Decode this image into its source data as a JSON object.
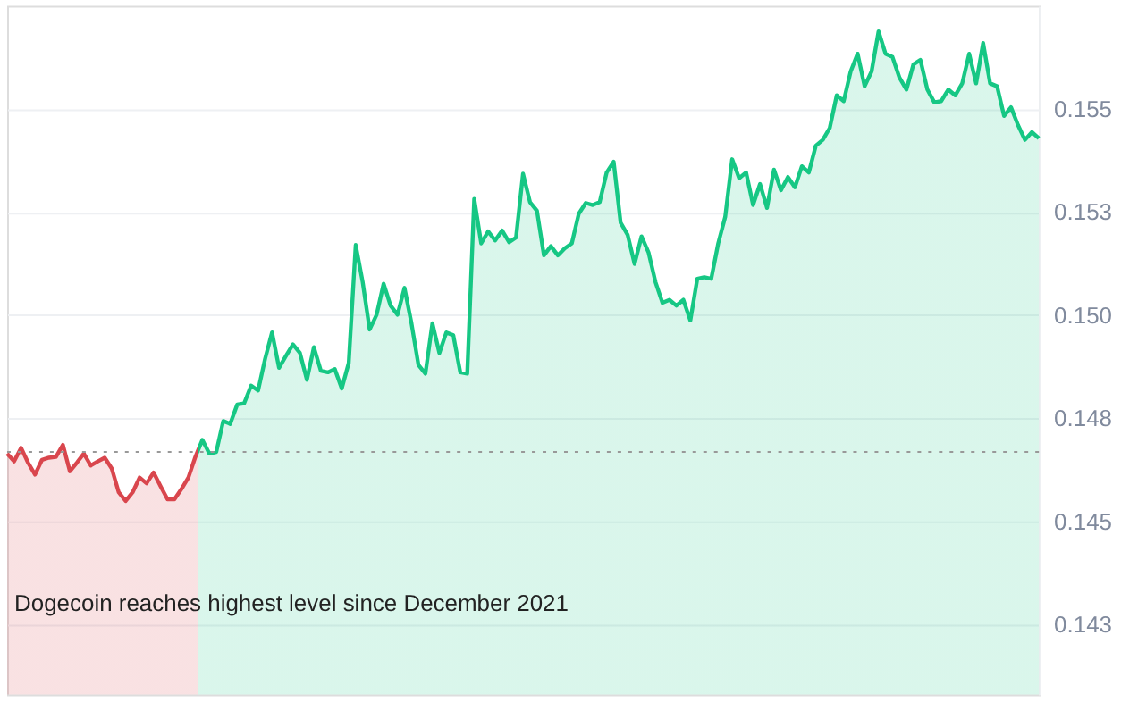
{
  "chart_data": {
    "type": "area",
    "categories": [
      null,
      null,
      null,
      null,
      null,
      null,
      null,
      null,
      null,
      null,
      null,
      null,
      null,
      null,
      null,
      null,
      null,
      null,
      null,
      null,
      null,
      null,
      null,
      null,
      null,
      null,
      null,
      null,
      null,
      null,
      null,
      null,
      null,
      null,
      null,
      null,
      null,
      null,
      null,
      null,
      null,
      null,
      null,
      null,
      null,
      null,
      null,
      null,
      null,
      null,
      null,
      null,
      null,
      null,
      null,
      null,
      null,
      null,
      null,
      null,
      null,
      null,
      null,
      null,
      null,
      null,
      null,
      null,
      null,
      null,
      null,
      null,
      null,
      null,
      null,
      null,
      null,
      null,
      null,
      null,
      null,
      null,
      null,
      null,
      null,
      null,
      null,
      null,
      null,
      null,
      null,
      null,
      null,
      null,
      null,
      null,
      null,
      null,
      null,
      null,
      null,
      null,
      null,
      null,
      null,
      null,
      null,
      null,
      null,
      null,
      null,
      null,
      null,
      null,
      null,
      null,
      null,
      null,
      null,
      null,
      null,
      null,
      null,
      null,
      null,
      null,
      null,
      null,
      null,
      null,
      null,
      null,
      null,
      null,
      null,
      null,
      null,
      null,
      null,
      null,
      null,
      null,
      null,
      null,
      null,
      null,
      null,
      null,
      null
    ],
    "series": [
      {
        "colors": [
          "#d9464d",
          "#d9464d",
          "#d9464d",
          "#d9464d",
          "#d9464d",
          "#d9464d",
          "#d9464d",
          "#d9464d",
          "#d9464d",
          "#d9464d",
          "#d9464d",
          "#d9464d",
          "#d9464d",
          "#d9464d",
          "#d9464d",
          "#d9464d",
          "#d9464d",
          "#d9464d",
          "#d9464d",
          "#d9464d",
          "#d9464d",
          "#d9464d",
          "#d9464d",
          "#d9464d",
          "#d9464d",
          "#d9464d",
          "#d9464d",
          "#d9464d",
          "#16c784",
          "#16c784",
          "#16c784",
          "#16c784",
          "#16c784",
          "#16c784",
          "#16c784",
          "#16c784",
          "#16c784",
          "#16c784",
          "#16c784",
          "#16c784",
          "#16c784",
          "#16c784",
          "#16c784",
          "#16c784",
          "#16c784",
          "#16c784",
          "#16c784",
          "#16c784",
          "#16c784",
          "#16c784",
          "#16c784",
          "#16c784",
          "#16c784",
          "#16c784",
          "#16c784",
          "#16c784",
          "#16c784",
          "#16c784",
          "#16c784",
          "#16c784",
          "#16c784",
          "#16c784",
          "#16c784",
          "#16c784",
          "#16c784",
          "#16c784",
          "#16c784",
          "#16c784",
          "#16c784",
          "#16c784",
          "#16c784",
          "#16c784",
          "#16c784",
          "#16c784",
          "#16c784",
          "#16c784",
          "#16c784",
          "#16c784",
          "#16c784",
          "#16c784",
          "#16c784",
          "#16c784",
          "#16c784",
          "#16c784",
          "#16c784",
          "#16c784",
          "#16c784",
          "#16c784",
          "#16c784",
          "#16c784",
          "#16c784",
          "#16c784",
          "#16c784",
          "#16c784",
          "#16c784",
          "#16c784",
          "#16c784",
          "#16c784",
          "#16c784",
          "#16c784",
          "#16c784",
          "#16c784",
          "#16c784",
          "#16c784",
          "#16c784",
          "#16c784",
          "#16c784",
          "#16c784",
          "#16c784",
          "#16c784",
          "#16c784",
          "#16c784",
          "#16c784",
          "#16c784",
          "#16c784",
          "#16c784",
          "#16c784",
          "#16c784",
          "#16c784",
          "#16c784",
          "#16c784",
          "#16c784",
          "#16c784",
          "#16c784",
          "#16c784",
          "#16c784",
          "#16c784",
          "#16c784",
          "#16c784",
          "#16c784",
          "#16c784",
          "#16c784",
          "#16c784",
          "#16c784",
          "#16c784",
          "#16c784",
          "#16c784",
          "#16c784",
          "#16c784",
          "#16c784",
          "#16c784",
          "#16c784",
          "#16c784",
          "#16c784",
          "#16c784",
          "#16c784",
          "#16c784",
          "#16c784",
          "#16c784"
        ],
        "values": [
          0.14664,
          0.14645,
          0.14678,
          0.14642,
          0.14613,
          0.14649,
          0.14654,
          0.14656,
          0.14685,
          0.14621,
          0.14642,
          0.14664,
          0.14635,
          0.14645,
          0.14654,
          0.14628,
          0.1457,
          0.14549,
          0.1457,
          0.14606,
          0.14592,
          0.14618,
          0.14585,
          0.14553,
          0.14553,
          0.14578,
          0.14606,
          0.14656,
          0.14697,
          0.14664,
          0.14668,
          0.14743,
          0.14736,
          0.14783,
          0.14786,
          0.14829,
          0.14817,
          0.14894,
          0.14958,
          0.14872,
          0.14901,
          0.14929,
          0.14908,
          0.14843,
          0.14922,
          0.14865,
          0.14861,
          0.14869,
          0.14822,
          0.14884,
          0.1517,
          0.1508,
          0.14965,
          0.15001,
          0.15076,
          0.15023,
          0.15001,
          0.15066,
          0.1498,
          0.14879,
          0.14858,
          0.1498,
          0.14908,
          0.14958,
          0.14951,
          0.14861,
          0.14858,
          0.15282,
          0.15174,
          0.15203,
          0.15181,
          0.15205,
          0.15177,
          0.15188,
          0.15343,
          0.15274,
          0.15253,
          0.15145,
          0.15167,
          0.15145,
          0.15162,
          0.15174,
          0.15246,
          0.15272,
          0.15267,
          0.15274,
          0.15346,
          0.15372,
          0.15224,
          0.15195,
          0.15124,
          0.15191,
          0.15152,
          0.1508,
          0.1503,
          0.15037,
          0.15023,
          0.15037,
          0.14987,
          0.15088,
          0.15092,
          0.15088,
          0.15174,
          0.15238,
          0.15378,
          0.15332,
          0.15346,
          0.15267,
          0.15318,
          0.1526,
          0.15353,
          0.15303,
          0.15335,
          0.1531,
          0.15361,
          0.15346,
          0.15411,
          0.15425,
          0.15454,
          0.15533,
          0.15519,
          0.15591,
          0.15634,
          0.15555,
          0.15591,
          0.15688,
          0.15634,
          0.15626,
          0.15576,
          0.15547,
          0.15608,
          0.15619,
          0.15547,
          0.15516,
          0.15519,
          0.15547,
          0.15533,
          0.15562,
          0.15634,
          0.15562,
          0.1566,
          0.15562,
          0.15555,
          0.15483,
          0.15504,
          0.15461,
          0.15425,
          0.15444,
          0.15429
        ]
      }
    ],
    "ylim": [
      0.1408,
      0.1575
    ],
    "yticks": [
      {
        "value": 0.1425,
        "label": "0.143"
      },
      {
        "value": 0.145,
        "label": "0.145"
      },
      {
        "value": 0.1475,
        "label": "0.148"
      },
      {
        "value": 0.15,
        "label": "0.150"
      },
      {
        "value": 0.1525,
        "label": "0.153"
      },
      {
        "value": 0.155,
        "label": "0.155"
      }
    ],
    "ref_lines": [
      {
        "axis": "y",
        "value": 0.14668,
        "color": "#999999",
        "line_style": "dotted"
      }
    ],
    "annotations": [
      "Dogecoin reaches highest level since December 2021"
    ],
    "grid": "y"
  }
}
